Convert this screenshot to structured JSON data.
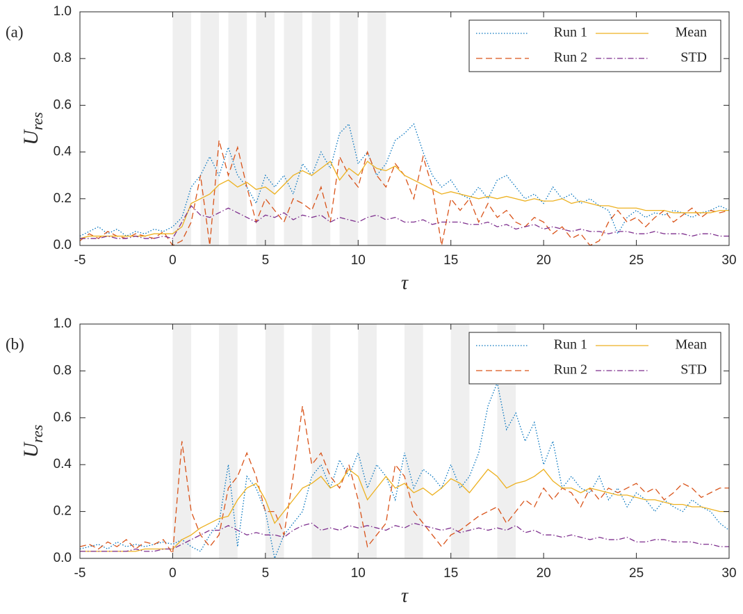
{
  "chart_data": [
    {
      "type": "line",
      "panel_label": "(a)",
      "xlabel": "τ",
      "ylabel": "U",
      "ylabel_subscript": "res",
      "xlim": [
        -5,
        30
      ],
      "ylim": [
        0,
        1
      ],
      "xticks": [
        -5,
        0,
        5,
        10,
        15,
        20,
        25,
        30
      ],
      "yticks": [
        {
          "value": 0,
          "label": "0.0"
        },
        0.2,
        0.4,
        0.6,
        0.8,
        {
          "value": 1,
          "label": "1.0"
        }
      ],
      "legend": "upper right",
      "shade_color": "#efefef",
      "shaded_regions": [
        [
          0,
          1
        ],
        [
          1.5,
          2.5
        ],
        [
          3,
          4
        ],
        [
          4.5,
          5.5
        ],
        [
          6,
          7
        ],
        [
          7.5,
          8.5
        ],
        [
          9,
          10
        ],
        [
          10.5,
          11.5
        ]
      ],
      "x": [
        -5,
        -4.5,
        -4,
        -3.5,
        -3,
        -2.5,
        -2,
        -1.5,
        -1,
        -0.5,
        0,
        0.5,
        1,
        1.5,
        2,
        2.5,
        3,
        3.5,
        4,
        4.5,
        5,
        5.5,
        6,
        6.5,
        7,
        7.5,
        8,
        8.5,
        9,
        9.5,
        10,
        10.5,
        11,
        11.5,
        12,
        12.5,
        13,
        13.5,
        14,
        14.5,
        15,
        15.5,
        16,
        16.5,
        17,
        17.5,
        18,
        18.5,
        19,
        19.5,
        20,
        20.5,
        21,
        21.5,
        22,
        22.5,
        23,
        23.5,
        24,
        24.5,
        25,
        25.5,
        26,
        26.5,
        27,
        27.5,
        28,
        28.5,
        29,
        29.5,
        30
      ],
      "series": [
        {
          "name": "Run 1",
          "color": "#0072bd",
          "linestyle": "dotted",
          "values": [
            0.04,
            0.06,
            0.08,
            0.05,
            0.07,
            0.04,
            0.06,
            0.05,
            0.07,
            0.06,
            0.08,
            0.12,
            0.25,
            0.3,
            0.38,
            0.3,
            0.42,
            0.3,
            0.25,
            0.18,
            0.3,
            0.25,
            0.3,
            0.22,
            0.35,
            0.3,
            0.4,
            0.33,
            0.48,
            0.52,
            0.35,
            0.4,
            0.3,
            0.35,
            0.45,
            0.48,
            0.52,
            0.4,
            0.3,
            0.25,
            0.28,
            0.22,
            0.2,
            0.25,
            0.2,
            0.28,
            0.3,
            0.25,
            0.2,
            0.22,
            0.18,
            0.25,
            0.2,
            0.22,
            0.18,
            0.2,
            0.17,
            0.15,
            0.05,
            0.12,
            0.15,
            0.12,
            0.14,
            0.13,
            0.15,
            0.14,
            0.12,
            0.14,
            0.15,
            0.17,
            0.15
          ]
        },
        {
          "name": "Run 2",
          "color": "#d95319",
          "linestyle": "dashed",
          "values": [
            0.02,
            0.05,
            0.03,
            0.06,
            0.04,
            0.03,
            0.05,
            0.04,
            0.03,
            0.06,
            0.0,
            0.02,
            0.1,
            0.3,
            0.0,
            0.45,
            0.3,
            0.42,
            0.25,
            0.1,
            0.2,
            0.15,
            0.1,
            0.2,
            0.18,
            0.15,
            0.25,
            0.1,
            0.38,
            0.3,
            0.25,
            0.4,
            0.3,
            0.25,
            0.35,
            0.3,
            0.2,
            0.38,
            0.25,
            0.0,
            0.2,
            0.15,
            0.2,
            0.1,
            0.18,
            0.12,
            0.15,
            0.1,
            0.08,
            0.12,
            0.1,
            0.05,
            0.08,
            0.03,
            0.05,
            0.0,
            0.02,
            0.1,
            0.15,
            0.1,
            0.12,
            0.08,
            0.12,
            0.15,
            0.1,
            0.13,
            0.16,
            0.12,
            0.15,
            0.14,
            0.15
          ]
        },
        {
          "name": "Mean",
          "color": "#edb120",
          "linestyle": "solid",
          "values": [
            0.03,
            0.04,
            0.04,
            0.04,
            0.04,
            0.04,
            0.04,
            0.04,
            0.05,
            0.05,
            0.05,
            0.08,
            0.18,
            0.2,
            0.22,
            0.26,
            0.28,
            0.25,
            0.27,
            0.24,
            0.25,
            0.22,
            0.26,
            0.3,
            0.32,
            0.3,
            0.33,
            0.36,
            0.28,
            0.33,
            0.3,
            0.36,
            0.33,
            0.32,
            0.34,
            0.3,
            0.28,
            0.26,
            0.24,
            0.22,
            0.23,
            0.22,
            0.21,
            0.2,
            0.21,
            0.2,
            0.21,
            0.2,
            0.19,
            0.2,
            0.19,
            0.19,
            0.2,
            0.18,
            0.19,
            0.18,
            0.17,
            0.17,
            0.16,
            0.16,
            0.16,
            0.15,
            0.15,
            0.15,
            0.14,
            0.14,
            0.14,
            0.14,
            0.14,
            0.15,
            0.15
          ]
        },
        {
          "name": "STD",
          "color": "#7e2f8e",
          "linestyle": "dashdot",
          "values": [
            0.03,
            0.03,
            0.03,
            0.04,
            0.03,
            0.03,
            0.04,
            0.03,
            0.03,
            0.04,
            0.03,
            0.1,
            0.17,
            0.13,
            0.12,
            0.14,
            0.16,
            0.14,
            0.12,
            0.1,
            0.13,
            0.12,
            0.14,
            0.11,
            0.13,
            0.12,
            0.13,
            0.1,
            0.12,
            0.11,
            0.1,
            0.12,
            0.13,
            0.11,
            0.12,
            0.1,
            0.1,
            0.11,
            0.09,
            0.1,
            0.1,
            0.1,
            0.09,
            0.09,
            0.1,
            0.08,
            0.09,
            0.07,
            0.08,
            0.09,
            0.07,
            0.08,
            0.07,
            0.06,
            0.07,
            0.06,
            0.06,
            0.05,
            0.06,
            0.06,
            0.05,
            0.05,
            0.06,
            0.05,
            0.05,
            0.05,
            0.04,
            0.05,
            0.05,
            0.04,
            0.04
          ]
        }
      ]
    },
    {
      "type": "line",
      "panel_label": "(b)",
      "xlabel": "τ",
      "ylabel": "U",
      "ylabel_subscript": "res",
      "xlim": [
        -5,
        30
      ],
      "ylim": [
        0,
        1
      ],
      "xticks": [
        -5,
        0,
        5,
        10,
        15,
        20,
        25,
        30
      ],
      "yticks": [
        {
          "value": 0,
          "label": "0.0"
        },
        0.2,
        0.4,
        0.6,
        0.8,
        {
          "value": 1,
          "label": "1.0"
        }
      ],
      "legend": "upper right",
      "shade_color": "#efefef",
      "shaded_regions": [
        [
          0,
          1
        ],
        [
          2.5,
          3.5
        ],
        [
          5,
          6
        ],
        [
          7.5,
          8.5
        ],
        [
          10,
          11
        ],
        [
          12.5,
          13.5
        ],
        [
          15,
          16
        ],
        [
          17.5,
          18.5
        ]
      ],
      "x": [
        -5,
        -4.5,
        -4,
        -3.5,
        -3,
        -2.5,
        -2,
        -1.5,
        -1,
        -0.5,
        0,
        0.5,
        1,
        1.5,
        2,
        2.5,
        3,
        3.5,
        4,
        4.5,
        5,
        5.5,
        6,
        6.5,
        7,
        7.5,
        8,
        8.5,
        9,
        9.5,
        10,
        10.5,
        11,
        11.5,
        12,
        12.5,
        13,
        13.5,
        14,
        14.5,
        15,
        15.5,
        16,
        16.5,
        17,
        17.5,
        18,
        18.5,
        19,
        19.5,
        20,
        20.5,
        21,
        21.5,
        22,
        22.5,
        23,
        23.5,
        24,
        24.5,
        25,
        25.5,
        26,
        26.5,
        27,
        27.5,
        28,
        28.5,
        29,
        29.5,
        30
      ],
      "series": [
        {
          "name": "Run 1",
          "color": "#0072bd",
          "linestyle": "dotted",
          "values": [
            0.04,
            0.05,
            0.06,
            0.04,
            0.07,
            0.05,
            0.06,
            0.05,
            0.06,
            0.07,
            0.06,
            0.08,
            0.05,
            0.03,
            0.1,
            0.15,
            0.4,
            0.05,
            0.35,
            0.3,
            0.2,
            0.0,
            0.1,
            0.15,
            0.2,
            0.35,
            0.4,
            0.3,
            0.42,
            0.35,
            0.45,
            0.3,
            0.4,
            0.35,
            0.25,
            0.45,
            0.3,
            0.38,
            0.35,
            0.3,
            0.4,
            0.3,
            0.35,
            0.45,
            0.65,
            0.75,
            0.55,
            0.62,
            0.5,
            0.58,
            0.4,
            0.5,
            0.3,
            0.35,
            0.3,
            0.28,
            0.35,
            0.25,
            0.3,
            0.22,
            0.28,
            0.25,
            0.2,
            0.25,
            0.22,
            0.2,
            0.25,
            0.22,
            0.2,
            0.15,
            0.12
          ]
        },
        {
          "name": "Run 2",
          "color": "#d95319",
          "linestyle": "dashed",
          "values": [
            0.05,
            0.06,
            0.04,
            0.07,
            0.05,
            0.08,
            0.04,
            0.07,
            0.06,
            0.08,
            0.02,
            0.5,
            0.2,
            0.1,
            0.05,
            0.1,
            0.3,
            0.35,
            0.45,
            0.35,
            0.2,
            0.2,
            0.1,
            0.35,
            0.65,
            0.4,
            0.45,
            0.35,
            0.3,
            0.4,
            0.25,
            0.05,
            0.1,
            0.15,
            0.4,
            0.35,
            0.2,
            0.15,
            0.1,
            0.05,
            0.1,
            0.12,
            0.15,
            0.18,
            0.2,
            0.22,
            0.15,
            0.2,
            0.25,
            0.22,
            0.3,
            0.25,
            0.3,
            0.28,
            0.22,
            0.3,
            0.25,
            0.3,
            0.28,
            0.3,
            0.32,
            0.28,
            0.3,
            0.25,
            0.28,
            0.32,
            0.3,
            0.26,
            0.28,
            0.3,
            0.3
          ]
        },
        {
          "name": "Mean",
          "color": "#edb120",
          "linestyle": "solid",
          "values": [
            0.03,
            0.03,
            0.03,
            0.03,
            0.03,
            0.03,
            0.03,
            0.04,
            0.04,
            0.04,
            0.04,
            0.08,
            0.1,
            0.13,
            0.15,
            0.17,
            0.18,
            0.25,
            0.3,
            0.32,
            0.25,
            0.15,
            0.2,
            0.25,
            0.3,
            0.32,
            0.35,
            0.3,
            0.32,
            0.38,
            0.35,
            0.25,
            0.3,
            0.35,
            0.3,
            0.32,
            0.28,
            0.3,
            0.27,
            0.3,
            0.34,
            0.32,
            0.28,
            0.33,
            0.38,
            0.35,
            0.3,
            0.32,
            0.33,
            0.35,
            0.38,
            0.33,
            0.3,
            0.3,
            0.28,
            0.3,
            0.29,
            0.28,
            0.27,
            0.27,
            0.26,
            0.25,
            0.25,
            0.24,
            0.23,
            0.23,
            0.22,
            0.22,
            0.21,
            0.2,
            0.2
          ]
        },
        {
          "name": "STD",
          "color": "#7e2f8e",
          "linestyle": "dashdot",
          "values": [
            0.03,
            0.03,
            0.03,
            0.03,
            0.03,
            0.03,
            0.04,
            0.03,
            0.03,
            0.04,
            0.04,
            0.06,
            0.08,
            0.1,
            0.12,
            0.12,
            0.14,
            0.12,
            0.1,
            0.11,
            0.1,
            0.1,
            0.09,
            0.12,
            0.14,
            0.15,
            0.12,
            0.13,
            0.12,
            0.14,
            0.13,
            0.14,
            0.13,
            0.12,
            0.14,
            0.13,
            0.15,
            0.14,
            0.13,
            0.12,
            0.13,
            0.11,
            0.12,
            0.13,
            0.12,
            0.13,
            0.12,
            0.14,
            0.11,
            0.12,
            0.1,
            0.1,
            0.09,
            0.1,
            0.09,
            0.08,
            0.09,
            0.08,
            0.08,
            0.09,
            0.07,
            0.07,
            0.08,
            0.08,
            0.07,
            0.07,
            0.07,
            0.06,
            0.06,
            0.05,
            0.05
          ]
        }
      ]
    }
  ]
}
